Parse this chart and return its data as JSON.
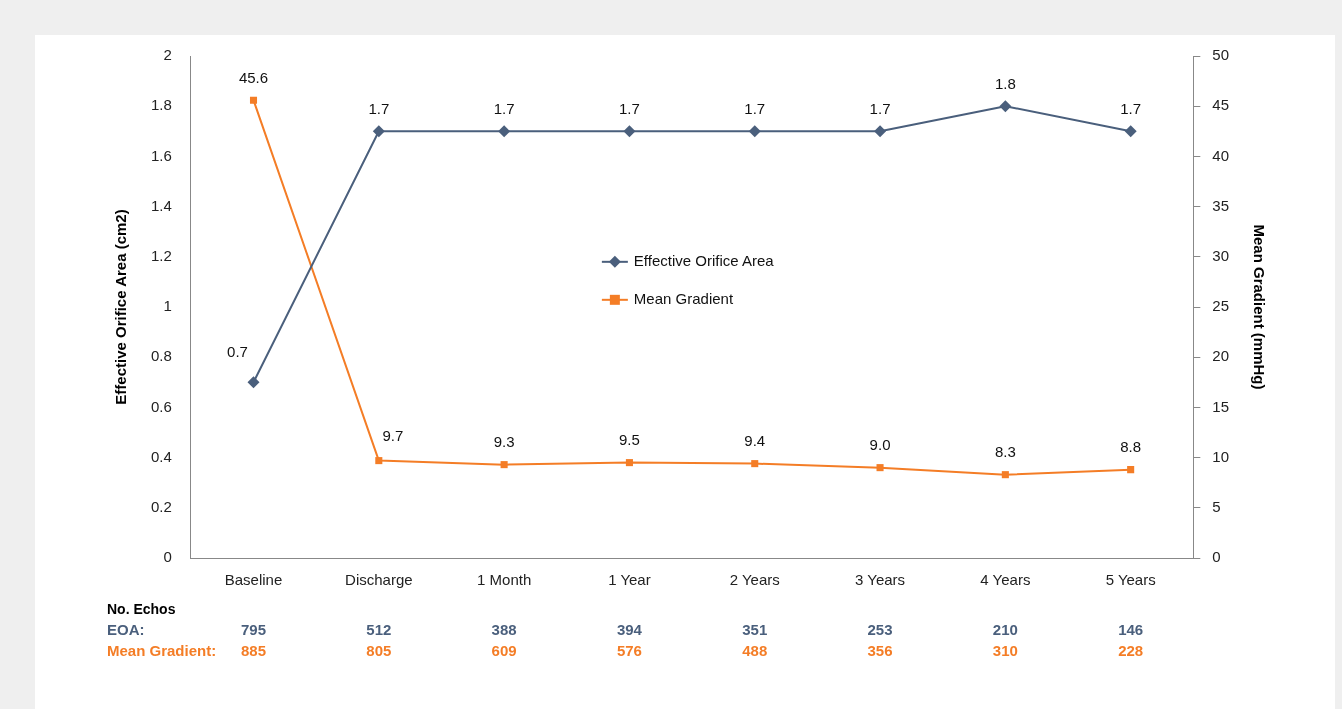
{
  "chart_data": {
    "type": "line",
    "categories": [
      "Baseline",
      "Discharge",
      "1 Month",
      "1 Year",
      "2 Years",
      "3 Years",
      "4 Years",
      "5 Years"
    ],
    "ylabel": "Effective Orifice Area (cm2)",
    "y2label": "Mean Gradient (mmHg)",
    "ylim": [
      0,
      2
    ],
    "yticks": [
      0,
      0.2,
      0.4,
      0.6,
      0.8,
      1,
      1.2,
      1.4,
      1.6,
      1.8,
      2
    ],
    "y2lim": [
      0,
      50
    ],
    "y2ticks": [
      0,
      5,
      10,
      15,
      20,
      25,
      30,
      35,
      40,
      45,
      50
    ],
    "grid": false,
    "legend": "center",
    "series": [
      {
        "name": "Effective Orifice Area",
        "color": "#4a5f7c",
        "marker": "diamond",
        "values": [
          0.7,
          1.7,
          1.7,
          1.7,
          1.7,
          1.7,
          1.8,
          1.7
        ],
        "value_labels": [
          "0.7",
          "1.7",
          "1.7",
          "1.7",
          "1.7",
          "1.7",
          "1.8",
          "1.7"
        ]
      },
      {
        "name": "Mean Gradient",
        "color": "#f47d26",
        "marker": "square",
        "axis": "y2",
        "values": [
          45.6,
          9.7,
          9.3,
          9.5,
          9.4,
          9.0,
          8.3,
          8.8
        ],
        "value_labels": [
          "45.6",
          "9.7",
          "9.3",
          "9.5",
          "9.4",
          "9.0",
          "8.3",
          "8.8"
        ]
      }
    ],
    "annotations": [
      "No. Echos",
      "EOA:",
      "795",
      "512",
      "388",
      "394",
      "351",
      "253",
      "210",
      "146",
      "Mean Gradient:",
      "885",
      "805",
      "609",
      "576",
      "488",
      "356",
      "310",
      "228"
    ]
  }
}
